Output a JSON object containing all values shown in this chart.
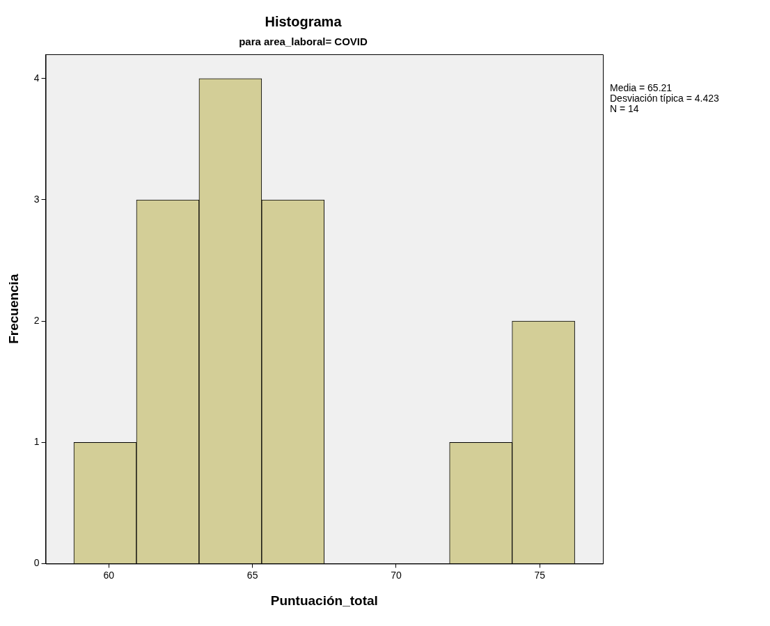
{
  "chart_data": {
    "type": "histogram",
    "title": "Histograma",
    "subtitle": "para area_laboral= COVID",
    "xlabel": "Puntuación_total",
    "ylabel": "Frecuencia",
    "bins": [
      58.78,
      60.96,
      63.14,
      65.32,
      67.5,
      69.68,
      71.86,
      74.04,
      76.22
    ],
    "values": [
      1,
      3,
      4,
      3,
      0,
      0,
      1,
      2
    ],
    "color": "#d3ce97",
    "xlim": [
      57.8,
      77.2
    ],
    "xticks": [
      60,
      65,
      70,
      75
    ],
    "ylim": [
      0,
      4.2
    ],
    "yticks": [
      0,
      1,
      2,
      3,
      4
    ],
    "grid": false,
    "legend": false,
    "annotations": [
      "Media = 65.21",
      "Desviación típica = 4.423",
      "N = 14"
    ]
  }
}
